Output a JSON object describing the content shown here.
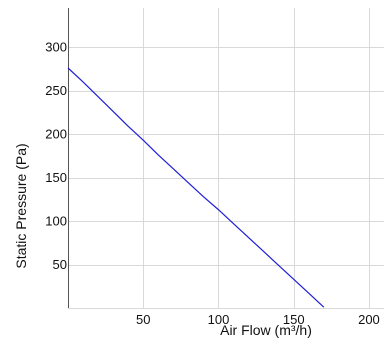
{
  "chart_data": {
    "type": "line",
    "title": "",
    "xlabel": "Air Flow (m³/h)",
    "ylabel": "Static Pressure (Pa)",
    "xlim": [
      0,
      210
    ],
    "ylim": [
      0,
      345
    ],
    "x_ticks": [
      50,
      100,
      150,
      200
    ],
    "y_ticks": [
      50,
      100,
      150,
      200,
      250,
      300
    ],
    "grid": true,
    "legend": "none",
    "series": [
      {
        "color": "#1f1fd6",
        "x": [
          0,
          10,
          20,
          30,
          40,
          50,
          60,
          70,
          80,
          90,
          100,
          110,
          120,
          130,
          140,
          150,
          160,
          170
        ],
        "y": [
          276,
          260,
          243,
          226,
          209,
          193,
          176,
          160,
          144,
          128,
          113,
          97,
          81,
          65,
          49,
          33,
          17,
          1
        ]
      }
    ]
  }
}
